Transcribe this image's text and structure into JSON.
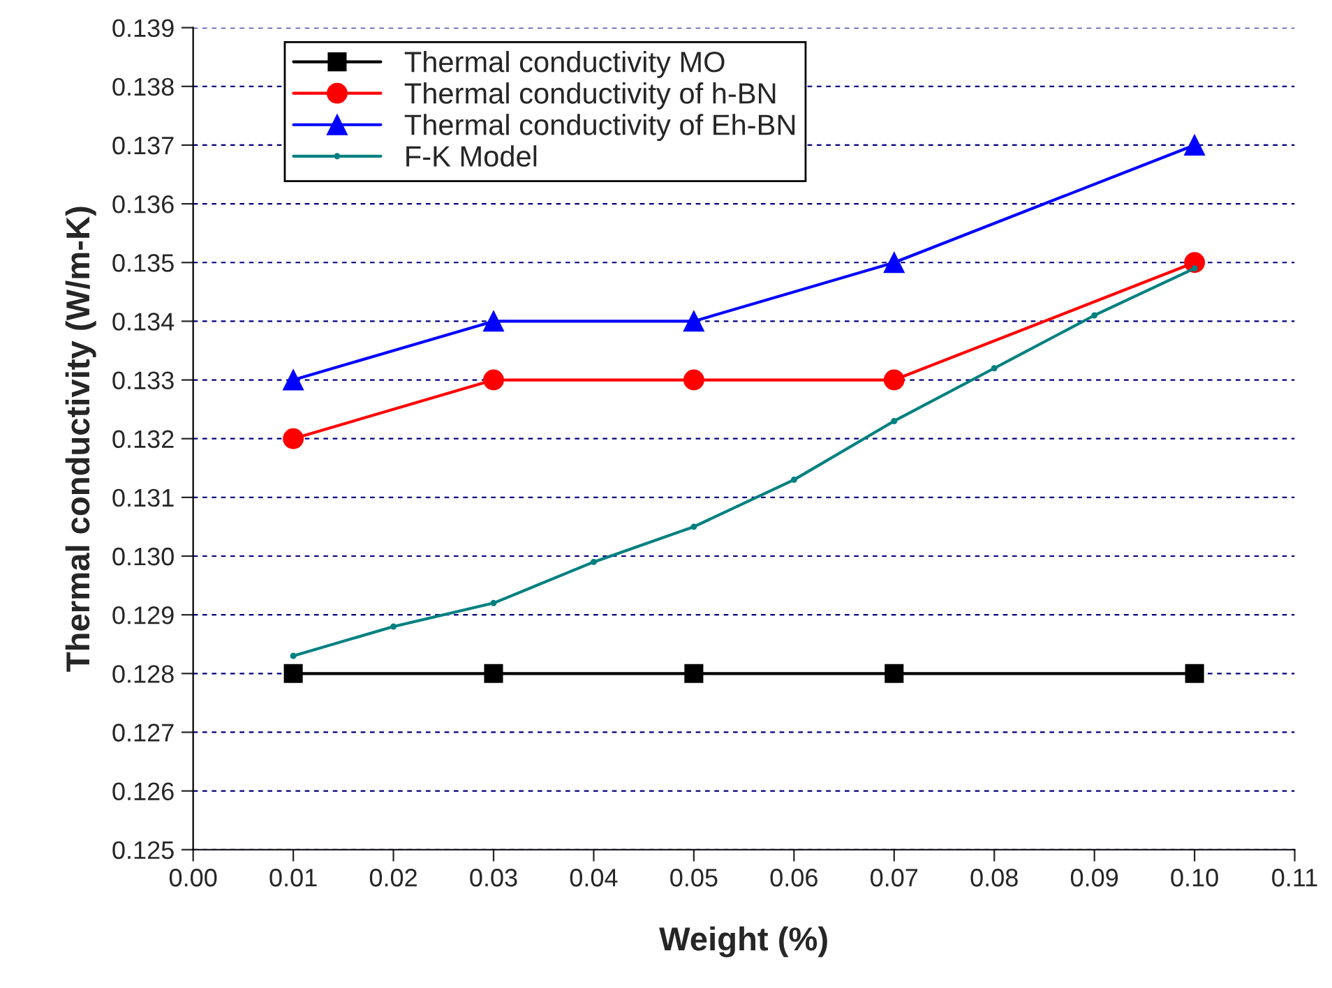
{
  "chart_data": {
    "type": "line",
    "xlabel": "Weight (%)",
    "ylabel": "Thermal conductivity (W/m-K)",
    "xlim": [
      0.0,
      0.11
    ],
    "xticks": [
      {
        "value": 0.0,
        "label": "0.00"
      },
      {
        "value": 0.01,
        "label": "0.01"
      },
      {
        "value": 0.02,
        "label": "0.02"
      },
      {
        "value": 0.03,
        "label": "0.03"
      },
      {
        "value": 0.04,
        "label": "0.04"
      },
      {
        "value": 0.05,
        "label": "0.05"
      },
      {
        "value": 0.06,
        "label": "0.06"
      },
      {
        "value": 0.07,
        "label": "0.07"
      },
      {
        "value": 0.08,
        "label": "0.08"
      },
      {
        "value": 0.09,
        "label": "0.09"
      },
      {
        "value": 0.1,
        "label": "0.10"
      },
      {
        "value": 0.11,
        "label": "0.11"
      }
    ],
    "ylim": [
      0.125,
      0.139
    ],
    "yticks": [
      0.125,
      0.126,
      0.127,
      0.128,
      0.129,
      {
        "value": 0.13,
        "label": "0.130"
      },
      0.131,
      0.132,
      0.133,
      0.134,
      0.135,
      0.136,
      0.137,
      0.138,
      0.139
    ],
    "grid": "y",
    "legend": "top left",
    "x": [
      0.01,
      0.03,
      0.05,
      0.07,
      0.1
    ],
    "series": [
      {
        "name": "Thermal conductivity MO",
        "color": "#000000",
        "marker": "square",
        "values": [
          0.128,
          0.128,
          0.128,
          0.128,
          0.128
        ]
      },
      {
        "name": "Thermal conductivity of h-BN",
        "color": "#ff0000",
        "marker": "circle",
        "values": [
          0.132,
          0.133,
          0.133,
          0.133,
          0.135
        ]
      },
      {
        "name": "Thermal conductivity of Eh-BN",
        "color": "#0000ff",
        "marker": "triangle",
        "values": [
          0.133,
          0.134,
          0.134,
          0.135,
          0.137
        ]
      },
      {
        "name": "F-K Model",
        "color": "#008080",
        "marker": "circle",
        "x": [
          0.01,
          0.02,
          0.03,
          0.04,
          0.05,
          0.06,
          0.07,
          0.08,
          0.09,
          0.1
        ],
        "values": [
          0.1283,
          0.1288,
          0.1292,
          0.1299,
          0.1305,
          0.1313,
          0.1323,
          0.1332,
          0.1341,
          0.1349
        ]
      }
    ]
  }
}
